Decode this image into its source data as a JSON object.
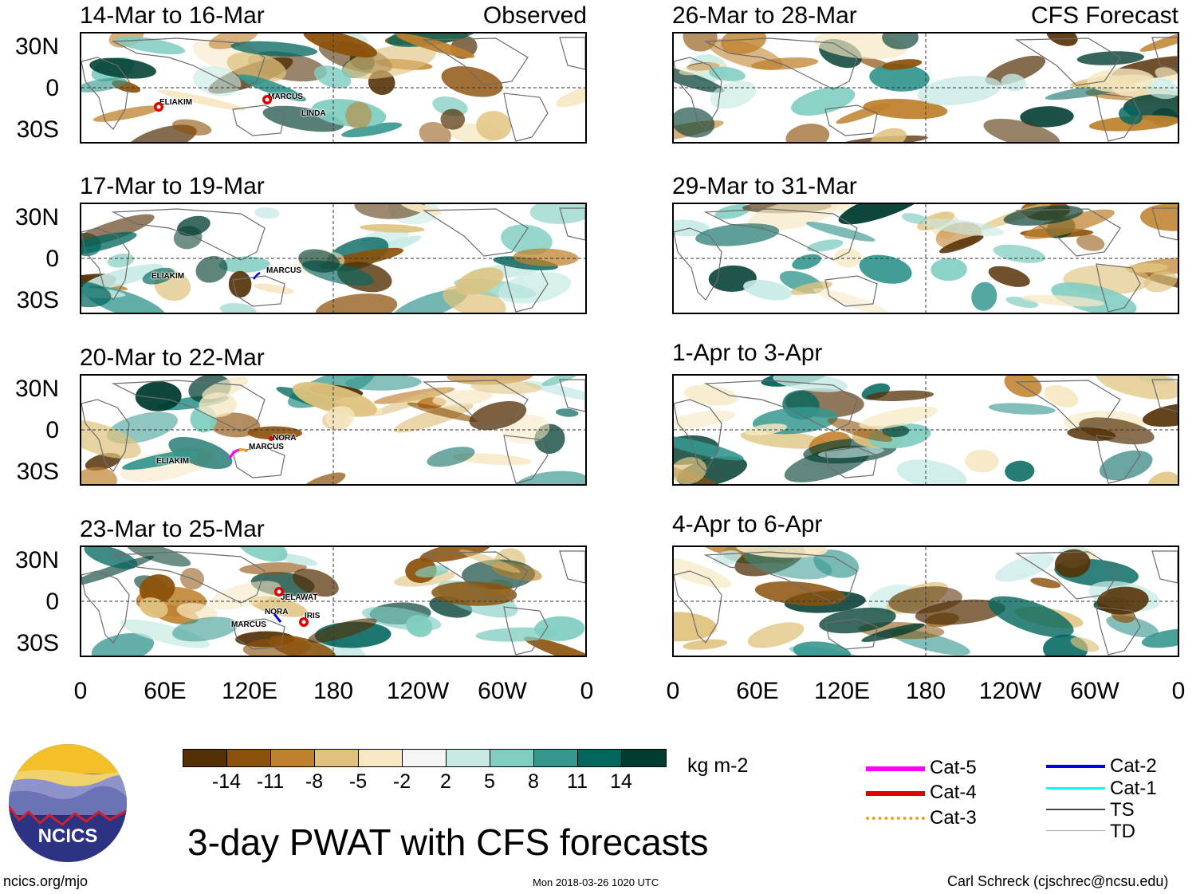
{
  "observed_tag": "Observed",
  "forecast_tag": "CFS Forecast",
  "panels": [
    {
      "title": "14-Mar to 16-Mar",
      "storms": [
        "ELIAKIM",
        "MARCUS",
        "LINDA"
      ]
    },
    {
      "title": "17-Mar to 19-Mar",
      "storms": [
        "ELIAKIM",
        "MARCUS"
      ]
    },
    {
      "title": "20-Mar to 22-Mar",
      "storms": [
        "NORA",
        "MARCUS",
        "ELIAKIM"
      ]
    },
    {
      "title": "23-Mar to 25-Mar",
      "storms": [
        "JELAWAT",
        "NORA",
        "IRIS",
        "MARCUS"
      ]
    },
    {
      "title": "26-Mar to 28-Mar",
      "storms": []
    },
    {
      "title": "29-Mar to 31-Mar",
      "storms": []
    },
    {
      "title": "1-Apr to 3-Apr",
      "storms": []
    },
    {
      "title": "4-Apr to 6-Apr",
      "storms": []
    }
  ],
  "lat_labels": [
    "30N",
    "0",
    "30S"
  ],
  "lon_labels": [
    "0",
    "60E",
    "120E",
    "180",
    "120W",
    "60W",
    "0"
  ],
  "colorbar": {
    "colors": [
      "#543005",
      "#8c510a",
      "#bf812d",
      "#dfc27d",
      "#f6e8c3",
      "#f5f5f5",
      "#c7eae5",
      "#80cdc1",
      "#35978f",
      "#01665e",
      "#003c30"
    ],
    "ticks": [
      "-14",
      "-11",
      "-8",
      "-5",
      "-2",
      "2",
      "5",
      "8",
      "11",
      "14"
    ],
    "units": "kg m-2"
  },
  "legend": [
    {
      "label": "Cat-5",
      "color": "#ff00ff"
    },
    {
      "label": "Cat-4",
      "color": "#e00000"
    },
    {
      "label": "Cat-3",
      "color": "#e8a317"
    },
    {
      "label": "Cat-2",
      "color": "#0000e0"
    },
    {
      "label": "Cat-1",
      "color": "#00ffff"
    },
    {
      "label": "TS",
      "color": "#444444"
    },
    {
      "label": "TD",
      "color": "#aaaaaa"
    }
  ],
  "logo_text": "NCICS",
  "main_title": "3-day PWAT with CFS forecasts",
  "footer": {
    "left": "ncics.org/mjo",
    "center": "Mon 2018-03-26 1020 UTC",
    "right": "Carl Schreck (cjschrec@ncsu.edu)"
  }
}
